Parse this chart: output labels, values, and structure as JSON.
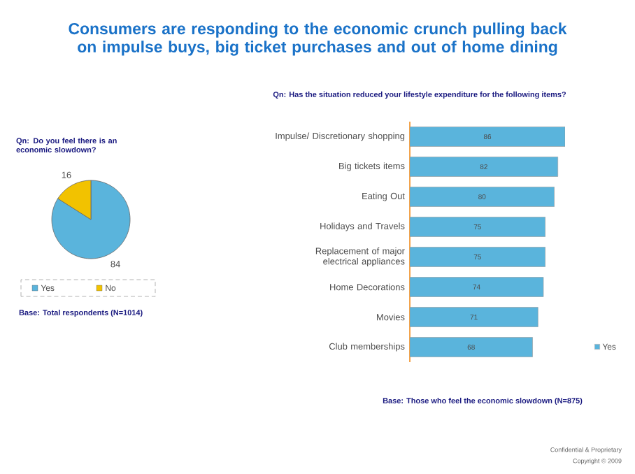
{
  "chart_data": [
    {
      "type": "pie",
      "title": "Consumers are responding to the economic crunch pulling back on impulse buys, big ticket purchases and out of home dining",
      "subtitle": "Qn: Do you feel there is an economic slowdown?",
      "categories": [
        "Yes",
        "No"
      ],
      "values": [
        84,
        16
      ],
      "colors": [
        "#5ab4dc",
        "#f2c200"
      ],
      "data_labels": true,
      "legend": "bottom",
      "annotations": [
        "Base: Total respondents (N=1014)"
      ]
    },
    {
      "type": "bar",
      "orientation": "horizontal",
      "title": "Qn: Has the situation reduced your lifestyle expenditure for the following items?",
      "categories": [
        "Impulse/ Discretionary shopping",
        "Big tickets items",
        "Eating Out",
        "Holidays and Travels",
        "Replacement of major electrical appliances",
        "Home Decorations",
        "Movies",
        "Club memberships"
      ],
      "series": [
        {
          "name": "Yes",
          "color": "#5ab4dc",
          "values": [
            86,
            82,
            80,
            75,
            75,
            74,
            71,
            68
          ]
        }
      ],
      "data_labels": true,
      "legend": "bottom right",
      "annotations": [
        "Base: Those who feel the economic slowdown (N=875)",
        "Confidential & Proprietary",
        "Copyright © 2009"
      ]
    }
  ]
}
